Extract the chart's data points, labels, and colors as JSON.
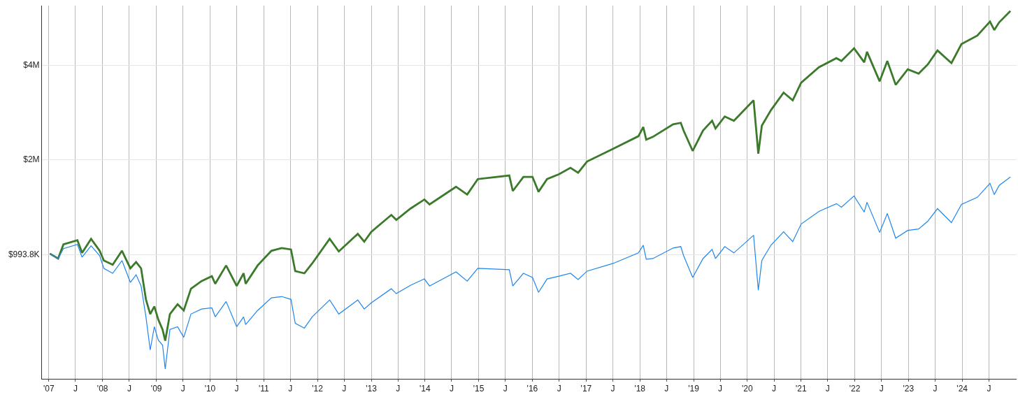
{
  "chart_data": {
    "type": "line",
    "log": "y",
    "grid": true,
    "line_style": "solid",
    "marker": "none",
    "xlim": [
      "2006-11-15",
      "2025-01-05"
    ],
    "xticks": [
      {
        "value": "2007-01-01",
        "label": "'07"
      },
      {
        "value": "2007-07-01",
        "label": "J"
      },
      {
        "value": "2008-01-01",
        "label": "'08"
      },
      {
        "value": "2008-07-01",
        "label": "J"
      },
      {
        "value": "2009-01-01",
        "label": "'09"
      },
      {
        "value": "2009-07-01",
        "label": "J"
      },
      {
        "value": "2010-01-01",
        "label": "'10"
      },
      {
        "value": "2010-07-01",
        "label": "J"
      },
      {
        "value": "2011-01-01",
        "label": "'11"
      },
      {
        "value": "2011-07-01",
        "label": "J"
      },
      {
        "value": "2012-01-01",
        "label": "'12"
      },
      {
        "value": "2012-07-01",
        "label": "J"
      },
      {
        "value": "2013-01-01",
        "label": "'13"
      },
      {
        "value": "2013-07-01",
        "label": "J"
      },
      {
        "value": "2014-01-01",
        "label": "'14"
      },
      {
        "value": "2014-07-01",
        "label": "J"
      },
      {
        "value": "2015-01-01",
        "label": "'15"
      },
      {
        "value": "2015-07-01",
        "label": "J"
      },
      {
        "value": "2016-01-01",
        "label": "'16"
      },
      {
        "value": "2016-07-01",
        "label": "J"
      },
      {
        "value": "2017-01-01",
        "label": "'17"
      },
      {
        "value": "2017-07-01",
        "label": "J"
      },
      {
        "value": "2018-01-01",
        "label": "'18"
      },
      {
        "value": "2018-07-01",
        "label": "J"
      },
      {
        "value": "2019-01-01",
        "label": "'19"
      },
      {
        "value": "2019-07-01",
        "label": "J"
      },
      {
        "value": "2020-01-01",
        "label": "'20"
      },
      {
        "value": "2020-07-01",
        "label": "J"
      },
      {
        "value": "2021-01-01",
        "label": "'21"
      },
      {
        "value": "2021-07-01",
        "label": "J"
      },
      {
        "value": "2022-01-01",
        "label": "'22"
      },
      {
        "value": "2022-07-01",
        "label": "J"
      },
      {
        "value": "2023-01-01",
        "label": "'23"
      },
      {
        "value": "2023-07-01",
        "label": "J"
      },
      {
        "value": "2024-01-01",
        "label": "'24"
      },
      {
        "value": "2024-07-01",
        "label": "J"
      }
    ],
    "ylim": [
      398000,
      6200000
    ],
    "yticks": [
      {
        "value": 993800,
        "label": "$993.8K"
      },
      {
        "value": 2000000,
        "label": "$2M"
      },
      {
        "value": 4000000,
        "label": "$4M"
      }
    ],
    "x": [
      "2007-01-08",
      "2007-03-05",
      "2007-04-10",
      "2007-07-14",
      "2007-08-15",
      "2007-10-15",
      "2007-12-12",
      "2008-01-10",
      "2008-03-10",
      "2008-05-12",
      "2008-07-08",
      "2008-08-16",
      "2008-09-19",
      "2008-10-22",
      "2008-11-20",
      "2008-12-18",
      "2009-01-14",
      "2009-02-12",
      "2009-03-02",
      "2009-04-03",
      "2009-05-25",
      "2009-07-06",
      "2009-08-24",
      "2009-11-04",
      "2010-01-13",
      "2010-02-05",
      "2010-04-20",
      "2010-07-01",
      "2010-08-17",
      "2010-08-31",
      "2010-11-20",
      "2011-02-22",
      "2011-05-03",
      "2011-07-05",
      "2011-08-03",
      "2011-10-04",
      "2011-11-26",
      "2012-03-24",
      "2012-05-25",
      "2012-10-01",
      "2012-11-14",
      "2013-01-01",
      "2013-05-17",
      "2013-06-20",
      "2013-09-24",
      "2013-12-28",
      "2014-02-01",
      "2014-07-31",
      "2014-10-15",
      "2014-12-26",
      "2015-07-28",
      "2015-08-21",
      "2015-11-01",
      "2016-01-02",
      "2016-02-12",
      "2016-04-10",
      "2016-06-30",
      "2016-09-16",
      "2016-11-07",
      "2017-01-07",
      "2017-07-02",
      "2017-12-22",
      "2018-01-24",
      "2018-02-13",
      "2018-03-30",
      "2018-08-15",
      "2018-10-06",
      "2018-10-25",
      "2018-12-26",
      "2019-03-06",
      "2019-05-07",
      "2019-05-30",
      "2019-08-01",
      "2019-10-02",
      "2020-02-13",
      "2020-03-16",
      "2020-04-09",
      "2020-06-10",
      "2020-09-04",
      "2020-11-05",
      "2021-01-01",
      "2021-05-02",
      "2021-08-29",
      "2021-10-02",
      "2021-12-27",
      "2022-03-06",
      "2022-03-25",
      "2022-06-19",
      "2022-08-10",
      "2022-10-06",
      "2022-12-27",
      "2023-03-11",
      "2023-05-12",
      "2023-07-17",
      "2023-10-20",
      "2023-12-27",
      "2024-04-13",
      "2024-07-08",
      "2024-08-06",
      "2024-09-09",
      "2024-11-24"
    ],
    "series": [
      {
        "color": "#3b7a2a",
        "values": [
          1000000,
          964000,
          1070000,
          1103000,
          1005000,
          1115000,
          1021000,
          950000,
          921000,
          1021000,
          897000,
          940000,
          897000,
          714000,
          641000,
          678000,
          615000,
          572000,
          527000,
          641000,
          689000,
          658000,
          772000,
          817000,
          847000,
          801000,
          916000,
          788000,
          865000,
          801000,
          916000,
          1021000,
          1042000,
          1031000,
          879000,
          865000,
          930000,
          1115000,
          1016000,
          1156000,
          1092000,
          1174000,
          1329000,
          1282000,
          1392000,
          1489000,
          1436000,
          1635000,
          1544000,
          1730000,
          1776000,
          1585000,
          1757000,
          1757000,
          1576000,
          1730000,
          1794000,
          1880000,
          1813000,
          1969000,
          2161000,
          2372000,
          2537000,
          2312000,
          2360000,
          2590000,
          2617000,
          2473000,
          2128000,
          2473000,
          2658000,
          2511000,
          2742000,
          2658000,
          3088000,
          2085000,
          2564000,
          2873000,
          3269000,
          3088000,
          3515000,
          3938000,
          4212000,
          4126000,
          4529000,
          4084000,
          4413000,
          3551000,
          4126000,
          3461000,
          3878000,
          3759000,
          4021000,
          4459000,
          4063000,
          4672000,
          4971000,
          5513000,
          5181000,
          5484000,
          5958000
        ]
      },
      {
        "color": "#1e86ee",
        "values": [
          1000000,
          964000,
          1037000,
          1070000,
          974000,
          1059000,
          985000,
          897000,
          865000,
          950000,
          809000,
          856000,
          788000,
          628000,
          492000,
          584000,
          529000,
          510000,
          428000,
          572000,
          584000,
          540000,
          641000,
          665000,
          671000,
          628000,
          703000,
          584000,
          628000,
          593000,
          658000,
          722000,
          729000,
          714000,
          599000,
          578000,
          628000,
          711000,
          641000,
          711000,
          665000,
          696000,
          772000,
          745000,
          792000,
          830000,
          788000,
          874000,
          817000,
          897000,
          888000,
          788000,
          865000,
          839000,
          752000,
          830000,
          847000,
          865000,
          826000,
          879000,
          930000,
          1005000,
          1064000,
          959000,
          964000,
          1042000,
          1053000,
          985000,
          839000,
          964000,
          1031000,
          964000,
          1053000,
          1005000,
          1144000,
          764000,
          950000,
          1064000,
          1174000,
          1092000,
          1243000,
          1364000,
          1444000,
          1407000,
          1528000,
          1357000,
          1459000,
          1168000,
          1343000,
          1120000,
          1186000,
          1198000,
          1269000,
          1392000,
          1256000,
          1436000,
          1513000,
          1677000,
          1544000,
          1652000,
          1757000
        ]
      }
    ]
  }
}
